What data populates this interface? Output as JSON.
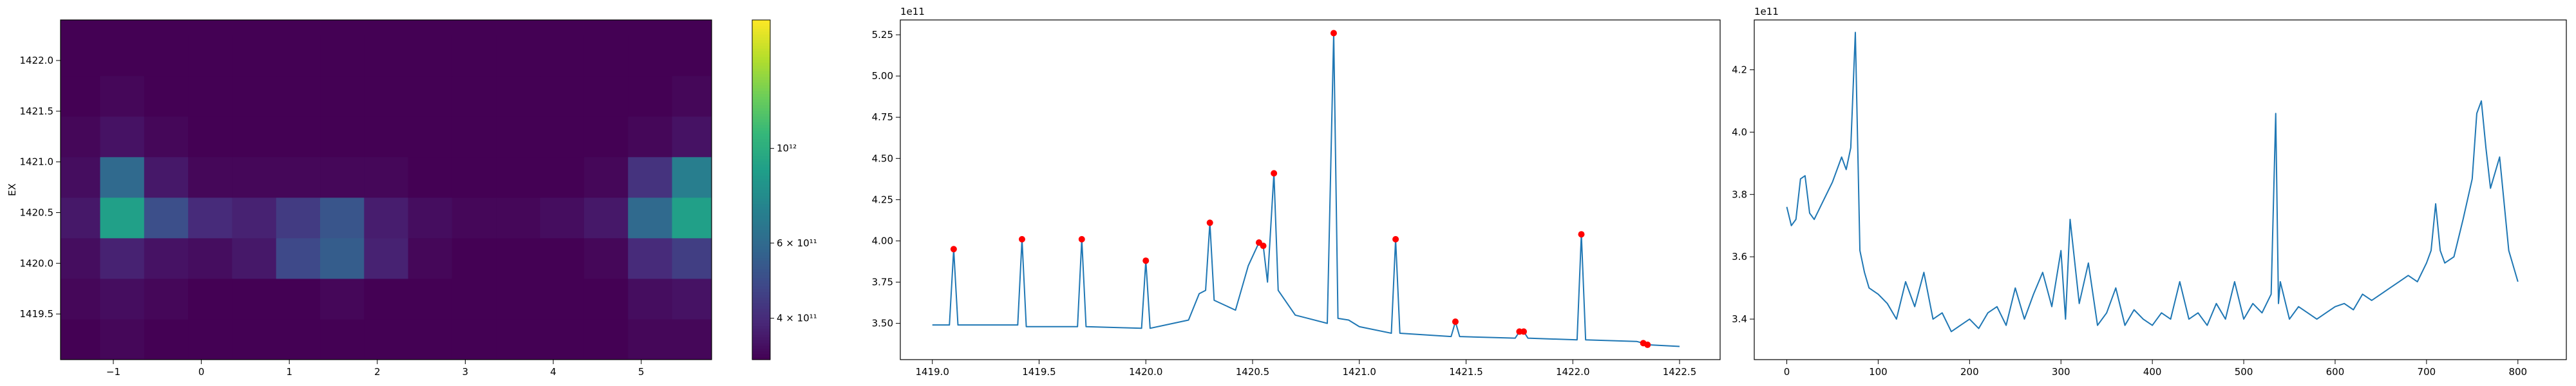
{
  "chart_data": [
    {
      "type": "heatmap",
      "ylabel": "EX",
      "colormap": "viridis",
      "log_scale": true,
      "x": [
        -1.4,
        -0.9,
        -0.4,
        0.1,
        0.6,
        1.1,
        1.6,
        2.1,
        2.6,
        3.1,
        3.6,
        4.1,
        4.6,
        5.1,
        5.6
      ],
      "y": [
        1419.25,
        1419.65,
        1420.05,
        1420.45,
        1420.85,
        1421.25,
        1421.65,
        1422.05
      ],
      "z": [
        [
          320000000000.0,
          330000000000.0,
          320000000000.0,
          320000000000.0,
          320000000000.0,
          320000000000.0,
          320000000000.0,
          320000000000.0,
          320000000000.0,
          320000000000.0,
          320000000000.0,
          320000000000.0,
          320000000000.0,
          330000000000.0,
          330000000000.0
        ],
        [
          330000000000.0,
          340000000000.0,
          330000000000.0,
          320000000000.0,
          320000000000.0,
          320000000000.0,
          330000000000.0,
          320000000000.0,
          320000000000.0,
          320000000000.0,
          320000000000.0,
          320000000000.0,
          320000000000.0,
          340000000000.0,
          350000000000.0
        ],
        [
          340000000000.0,
          380000000000.0,
          350000000000.0,
          340000000000.0,
          360000000000.0,
          480000000000.0,
          550000000000.0,
          380000000000.0,
          330000000000.0,
          320000000000.0,
          320000000000.0,
          320000000000.0,
          330000000000.0,
          400000000000.0,
          450000000000.0
        ],
        [
          360000000000.0,
          900000000000.0,
          500000000000.0,
          400000000000.0,
          380000000000.0,
          440000000000.0,
          520000000000.0,
          370000000000.0,
          340000000000.0,
          330000000000.0,
          330000000000.0,
          340000000000.0,
          360000000000.0,
          600000000000.0,
          900000000000.0
        ],
        [
          340000000000.0,
          600000000000.0,
          360000000000.0,
          330000000000.0,
          330000000000.0,
          330000000000.0,
          330000000000.0,
          330000000000.0,
          320000000000.0,
          320000000000.0,
          320000000000.0,
          320000000000.0,
          330000000000.0,
          420000000000.0,
          700000000000.0
        ],
        [
          330000000000.0,
          350000000000.0,
          330000000000.0,
          320000000000.0,
          320000000000.0,
          320000000000.0,
          320000000000.0,
          320000000000.0,
          320000000000.0,
          320000000000.0,
          320000000000.0,
          320000000000.0,
          320000000000.0,
          330000000000.0,
          350000000000.0
        ],
        [
          320000000000.0,
          330000000000.0,
          320000000000.0,
          320000000000.0,
          320000000000.0,
          320000000000.0,
          320000000000.0,
          320000000000.0,
          320000000000.0,
          320000000000.0,
          320000000000.0,
          320000000000.0,
          320000000000.0,
          320000000000.0,
          330000000000.0
        ],
        [
          320000000000.0,
          320000000000.0,
          320000000000.0,
          320000000000.0,
          320000000000.0,
          320000000000.0,
          320000000000.0,
          320000000000.0,
          320000000000.0,
          320000000000.0,
          320000000000.0,
          320000000000.0,
          320000000000.0,
          320000000000.0,
          320000000000.0
        ]
      ],
      "xlim": [
        -1.6,
        5.8
      ],
      "ylim": [
        1419.05,
        1422.4
      ],
      "xticks": [
        {
          "value": -1,
          "label": "−1"
        },
        0,
        1,
        2,
        3,
        4,
        5
      ],
      "yticks": [
        1419.5,
        {
          "value": 1420.0,
          "label": "1420.0"
        },
        1420.5,
        {
          "value": 1421.0,
          "label": "1421.0"
        },
        1421.5,
        {
          "value": 1422.0,
          "label": "1422.0"
        }
      ],
      "clim": [
        320000000000.0,
        2000000000000.0
      ],
      "cticks": [
        {
          "value": 400000000000.0,
          "label": "4 × 10¹¹"
        },
        {
          "value": 600000000000.0,
          "label": "6 × 10¹¹"
        },
        {
          "value": 1000000000000.0,
          "label": "10¹²"
        }
      ]
    },
    {
      "type": "line",
      "offset_label": "1e11",
      "series": [
        {
          "type": "line",
          "color": "#1f77b4",
          "x": [
            1419.0,
            1419.08,
            1419.1,
            1419.12,
            1419.4,
            1419.42,
            1419.44,
            1419.68,
            1419.7,
            1419.72,
            1419.98,
            1420.0,
            1420.02,
            1420.2,
            1420.25,
            1420.28,
            1420.3,
            1420.32,
            1420.42,
            1420.48,
            1420.53,
            1420.55,
            1420.57,
            1420.6,
            1420.62,
            1420.7,
            1420.85,
            1420.88,
            1420.9,
            1420.95,
            1421.0,
            1421.15,
            1421.17,
            1421.19,
            1421.43,
            1421.45,
            1421.47,
            1421.73,
            1421.75,
            1421.77,
            1421.79,
            1422.02,
            1422.04,
            1422.06,
            1422.3,
            1422.33,
            1422.35,
            1422.5
          ],
          "values": [
            3.49,
            3.49,
            3.95,
            3.49,
            3.49,
            4.01,
            3.48,
            3.48,
            4.01,
            3.48,
            3.47,
            3.88,
            3.47,
            3.52,
            3.68,
            3.7,
            4.11,
            3.64,
            3.58,
            3.85,
            3.99,
            3.97,
            3.75,
            4.41,
            3.7,
            3.55,
            3.5,
            5.26,
            3.53,
            3.52,
            3.48,
            3.44,
            4.01,
            3.44,
            3.42,
            3.51,
            3.42,
            3.41,
            3.45,
            3.45,
            3.41,
            3.4,
            4.04,
            3.4,
            3.39,
            3.38,
            3.37,
            3.36
          ]
        },
        {
          "type": "scatter",
          "color": "#ff0000",
          "x": [
            1419.1,
            1419.42,
            1419.7,
            1420.0,
            1420.3,
            1420.53,
            1420.55,
            1420.6,
            1420.88,
            1421.17,
            1421.45,
            1421.75,
            1421.77,
            1422.04,
            1422.33,
            1422.35
          ],
          "values": [
            3.95,
            4.01,
            4.01,
            3.88,
            4.11,
            3.99,
            3.97,
            4.41,
            5.26,
            4.01,
            3.51,
            3.45,
            3.45,
            4.04,
            3.38,
            3.37
          ]
        }
      ],
      "xlim": [
        1418.85,
        1422.69
      ],
      "ylim": [
        3.28,
        5.34
      ],
      "xticks": [
        {
          "value": 1419.0,
          "label": "1419.0"
        },
        1419.5,
        {
          "value": 1420.0,
          "label": "1420.0"
        },
        1420.5,
        {
          "value": 1421.0,
          "label": "1421.0"
        },
        1421.5,
        {
          "value": 1422.0,
          "label": "1422.0"
        },
        1422.5
      ],
      "yticks": [
        {
          "value": 3.5,
          "label": "3.50"
        },
        {
          "value": 3.75,
          "label": "3.75"
        },
        {
          "value": 4.0,
          "label": "4.00"
        },
        {
          "value": 4.25,
          "label": "4.25"
        },
        {
          "value": 4.5,
          "label": "4.50"
        },
        {
          "value": 4.75,
          "label": "4.75"
        },
        {
          "value": 5.0,
          "label": "5.00"
        },
        {
          "value": 5.25,
          "label": "5.25"
        }
      ]
    },
    {
      "type": "line",
      "offset_label": "1e11",
      "series": [
        {
          "type": "line",
          "color": "#1f77b4",
          "x": [
            0,
            5,
            10,
            15,
            20,
            25,
            30,
            40,
            50,
            60,
            65,
            70,
            75,
            78,
            80,
            85,
            90,
            100,
            110,
            120,
            130,
            140,
            150,
            160,
            170,
            180,
            190,
            200,
            210,
            220,
            230,
            240,
            250,
            260,
            270,
            280,
            290,
            300,
            305,
            310,
            320,
            330,
            340,
            350,
            360,
            370,
            380,
            390,
            400,
            410,
            420,
            430,
            440,
            450,
            460,
            470,
            480,
            490,
            500,
            510,
            520,
            530,
            535,
            538,
            540,
            550,
            560,
            570,
            580,
            590,
            600,
            610,
            620,
            630,
            640,
            650,
            660,
            670,
            680,
            690,
            700,
            705,
            710,
            715,
            720,
            730,
            740,
            750,
            755,
            760,
            765,
            770,
            780,
            790,
            800
          ],
          "values": [
            3.76,
            3.7,
            3.72,
            3.85,
            3.86,
            3.74,
            3.72,
            3.78,
            3.84,
            3.92,
            3.88,
            3.95,
            4.32,
            3.9,
            3.62,
            3.55,
            3.5,
            3.48,
            3.45,
            3.4,
            3.52,
            3.44,
            3.55,
            3.4,
            3.42,
            3.36,
            3.38,
            3.4,
            3.37,
            3.42,
            3.44,
            3.38,
            3.5,
            3.4,
            3.48,
            3.55,
            3.44,
            3.62,
            3.4,
            3.72,
            3.45,
            3.58,
            3.38,
            3.42,
            3.5,
            3.38,
            3.43,
            3.4,
            3.38,
            3.42,
            3.4,
            3.52,
            3.4,
            3.42,
            3.38,
            3.45,
            3.4,
            3.52,
            3.4,
            3.45,
            3.42,
            3.48,
            4.06,
            3.45,
            3.52,
            3.4,
            3.44,
            3.42,
            3.4,
            3.42,
            3.44,
            3.45,
            3.43,
            3.48,
            3.46,
            3.48,
            3.5,
            3.52,
            3.54,
            3.52,
            3.58,
            3.62,
            3.77,
            3.62,
            3.58,
            3.6,
            3.72,
            3.85,
            4.06,
            4.1,
            3.95,
            3.82,
            3.92,
            3.62,
            3.52
          ]
        }
      ],
      "xlim": [
        -35.6,
        853
      ],
      "ylim": [
        3.27,
        4.36
      ],
      "xticks": [
        0,
        100,
        200,
        300,
        400,
        500,
        600,
        700,
        800
      ],
      "yticks": [
        3.4,
        3.6,
        3.8,
        {
          "value": 4.0,
          "label": "4.0"
        },
        4.2
      ]
    }
  ]
}
